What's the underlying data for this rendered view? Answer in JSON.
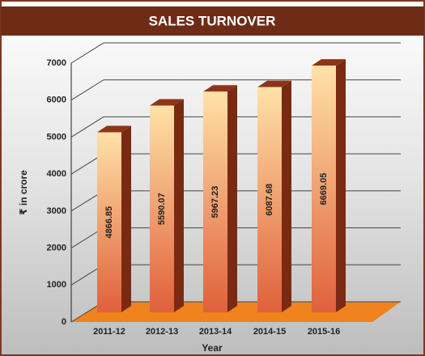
{
  "chart_data": {
    "type": "bar3d",
    "title": "SALES TURNOVER",
    "categories": [
      "2011-12",
      "2012-13",
      "2013-14",
      "2014-15",
      "2015-16"
    ],
    "values": [
      4866.85,
      5590.07,
      5967.23,
      6087.68,
      6669.05
    ],
    "ylim": [
      0,
      7000
    ],
    "yticks": [
      0,
      1000,
      2000,
      3000,
      4000,
      5000,
      6000,
      7000
    ],
    "xlabel": "Year",
    "ylabel": "₹ in crore",
    "grid": true
  }
}
